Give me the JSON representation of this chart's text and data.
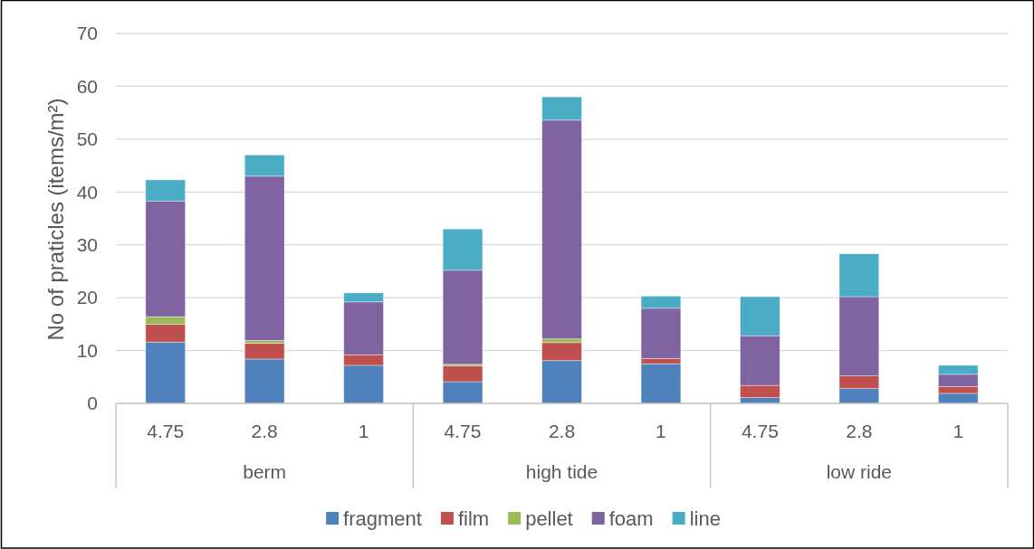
{
  "chart_data": {
    "type": "bar",
    "stacked": true,
    "ylabel": "No of praticles (items/m²)",
    "categories": [
      "4.75",
      "2.8",
      "1",
      "4.75",
      "2.8",
      "1",
      "4.75",
      "2.8",
      "1"
    ],
    "annotations": [
      "berm",
      "high tide",
      "low ride"
    ],
    "series": [
      {
        "name": "fragment",
        "color": "#4f81bd",
        "values": [
          11.6,
          8.4,
          7.2,
          4.1,
          8.1,
          7.5,
          1.1,
          2.8,
          1.9
        ]
      },
      {
        "name": "film",
        "color": "#c0504d",
        "values": [
          3.4,
          3.0,
          2.0,
          3.0,
          3.4,
          1.0,
          2.3,
          2.4,
          1.3
        ]
      },
      {
        "name": "pellet",
        "color": "#9bbb59",
        "values": [
          1.4,
          0.5,
          0,
          0.3,
          0.7,
          0,
          0,
          0,
          0
        ]
      },
      {
        "name": "foam",
        "color": "#8064a2",
        "values": [
          21.9,
          31.1,
          10.0,
          17.8,
          41.4,
          9.5,
          9.4,
          15.0,
          2.3
        ]
      },
      {
        "name": "line",
        "color": "#4bacc6",
        "values": [
          4.0,
          4.0,
          1.7,
          7.8,
          4.4,
          2.3,
          7.4,
          8.1,
          1.7
        ]
      }
    ],
    "ylim": [
      0,
      70
    ],
    "yticks": [
      0,
      10,
      20,
      30,
      40,
      50,
      60,
      70
    ],
    "grid": "y",
    "legend": "bottom"
  }
}
